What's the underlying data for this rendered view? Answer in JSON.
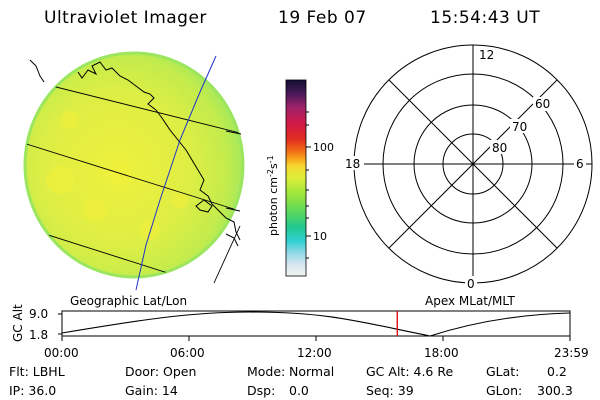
{
  "header": {
    "title": "Ultraviolet Imager",
    "date": "19 Feb 07",
    "time": "15:54:43 UT"
  },
  "colorbar": {
    "unit_main": "photon cm",
    "unit_sup1": "-2",
    "unit_mid": "s",
    "unit_sup2": "-1",
    "tick_100": "100",
    "tick_10": "10"
  },
  "polar": {
    "mlt_12": "12",
    "mlt_18": "18",
    "mlt_6": "6",
    "mlt_0": "0",
    "lat_60": "60",
    "lat_70": "70",
    "lat_80": "80"
  },
  "orbit": {
    "left_label": "Geographic Lat/Lon",
    "right_label": "Apex MLat/MLT",
    "yaxis_label": "GC Alt",
    "y_max": "9.0",
    "y_min": "1.8",
    "x_ticks": [
      "00:00",
      "06:00",
      "12:00",
      "18:00",
      "23:59"
    ],
    "current_fraction": 0.66
  },
  "info": {
    "flt": "Flt: LBHL",
    "ip": "IP: 36.0",
    "door": "Door: Open",
    "gain": "Gain: 14",
    "mode_label": "Mode:",
    "mode_value": "Normal",
    "dsp_label": "Dsp:",
    "dsp_value": "0.0",
    "gcalt": "GC Alt: 4.6 Re",
    "seq": "Seq: 39",
    "glat_label": "GLat:",
    "glat_value": "0.2",
    "glon_label": "GLon:",
    "glon_value": "300.3"
  },
  "colors": {
    "disk_main": "#e6ef3e",
    "disk_edge": "#a8ea56",
    "orbit_marker": "#e01010",
    "meridian": "#2233cc"
  }
}
